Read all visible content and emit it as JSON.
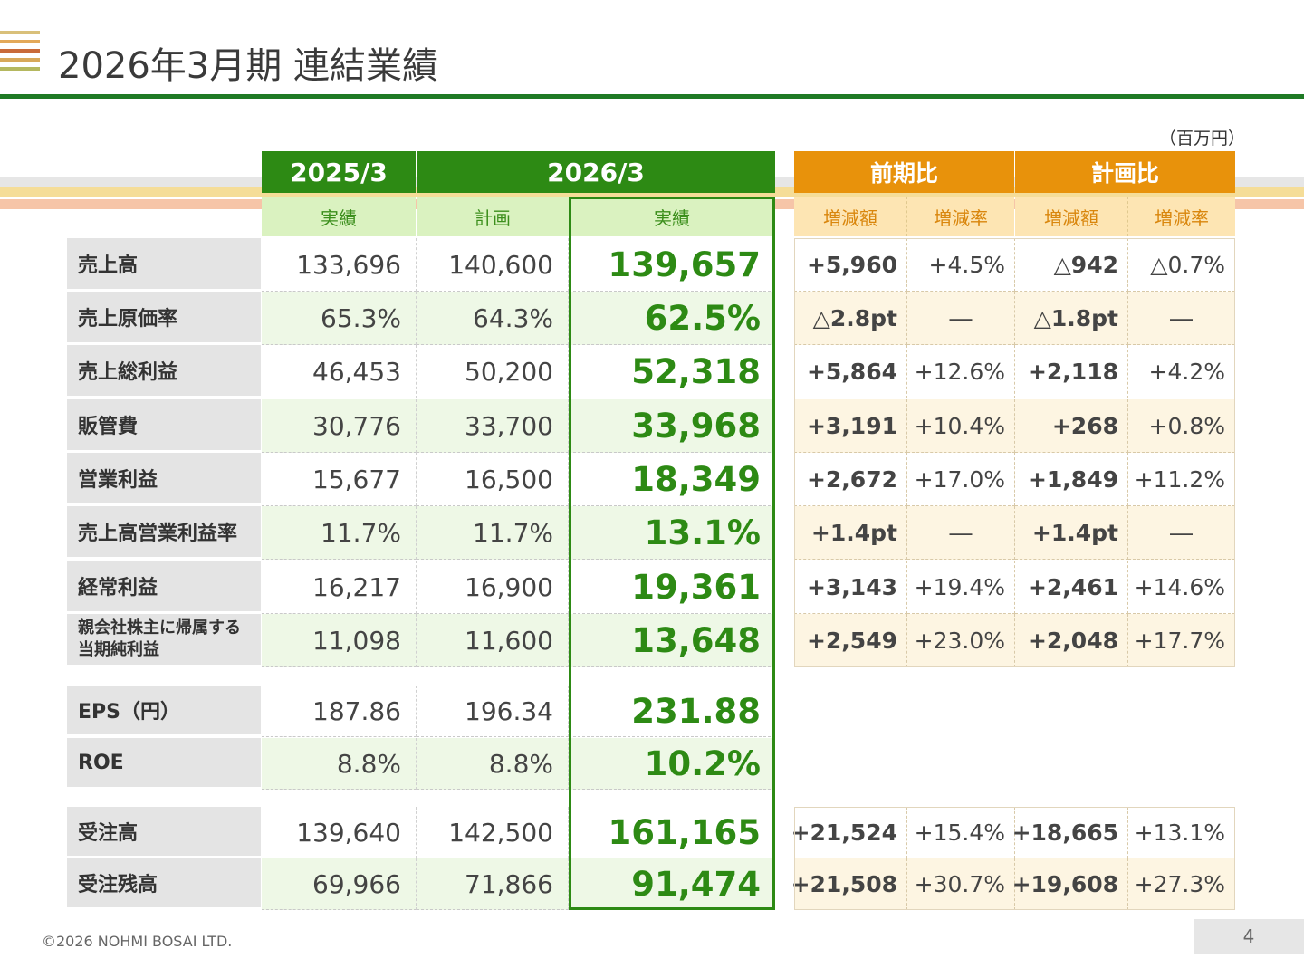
{
  "title": "2026年3月期 連結業績",
  "unit": "（百万円）",
  "colors": {
    "title_bars": [
      "#d9c07a",
      "#e3a95a",
      "#c96a3a",
      "#b5b860"
    ],
    "green": "#2d8a14",
    "orange": "#e8920b"
  },
  "headers": {
    "y2025": "2025/3",
    "y2026": "2026/3",
    "yoy": "前期比",
    "vsplan": "計画比",
    "sub_actual_2025": "実績",
    "sub_plan": "計画",
    "sub_actual_2026": "実績",
    "sub_yoy_amt": "増減額",
    "sub_yoy_rate": "増減率",
    "sub_plan_amt": "増減額",
    "sub_plan_rate": "増減率"
  },
  "rows": [
    {
      "label": "売上高",
      "a2025": "133,696",
      "plan": "140,600",
      "a2026": "139,657",
      "yoy_amt": "+5,960",
      "yoy_rate": "+4.5%",
      "plan_amt": "△942",
      "plan_rate": "△0.7%"
    },
    {
      "label": "売上原価率",
      "a2025": "65.3%",
      "plan": "64.3%",
      "a2026": "62.5%",
      "yoy_amt": "△2.8pt",
      "yoy_rate": "―",
      "plan_amt": "△1.8pt",
      "plan_rate": "―"
    },
    {
      "label": "売上総利益",
      "a2025": "46,453",
      "plan": "50,200",
      "a2026": "52,318",
      "yoy_amt": "+5,864",
      "yoy_rate": "+12.6%",
      "plan_amt": "+2,118",
      "plan_rate": "+4.2%"
    },
    {
      "label": "販管費",
      "a2025": "30,776",
      "plan": "33,700",
      "a2026": "33,968",
      "yoy_amt": "+3,191",
      "yoy_rate": "+10.4%",
      "plan_amt": "+268",
      "plan_rate": "+0.8%"
    },
    {
      "label": "営業利益",
      "a2025": "15,677",
      "plan": "16,500",
      "a2026": "18,349",
      "yoy_amt": "+2,672",
      "yoy_rate": "+17.0%",
      "plan_amt": "+1,849",
      "plan_rate": "+11.2%"
    },
    {
      "label": "売上高営業利益率",
      "a2025": "11.7%",
      "plan": "11.7%",
      "a2026": "13.1%",
      "yoy_amt": "+1.4pt",
      "yoy_rate": "―",
      "plan_amt": "+1.4pt",
      "plan_rate": "―"
    },
    {
      "label": "経常利益",
      "a2025": "16,217",
      "plan": "16,900",
      "a2026": "19,361",
      "yoy_amt": "+3,143",
      "yoy_rate": "+19.4%",
      "plan_amt": "+2,461",
      "plan_rate": "+14.6%"
    },
    {
      "label": "親会社株主に帰属する当期純利益",
      "label_line1": "親会社株主に帰属する",
      "label_line2": "当期純利益",
      "a2025": "11,098",
      "plan": "11,600",
      "a2026": "13,648",
      "yoy_amt": "+2,549",
      "yoy_rate": "+23.0%",
      "plan_amt": "+2,048",
      "plan_rate": "+17.7%"
    }
  ],
  "per_share": [
    {
      "label": "EPS（円）",
      "a2025": "187.86",
      "plan": "196.34",
      "a2026": "231.88"
    },
    {
      "label": "ROE",
      "a2025": "8.8%",
      "plan": "8.8%",
      "a2026": "10.2%"
    }
  ],
  "orders": [
    {
      "label": "受注高",
      "a2025": "139,640",
      "plan": "142,500",
      "a2026": "161,165",
      "yoy_amt": "+21,524",
      "yoy_rate": "+15.4%",
      "plan_amt": "+18,665",
      "plan_rate": "+13.1%"
    },
    {
      "label": "受注残高",
      "a2025": "69,966",
      "plan": "71,866",
      "a2026": "91,474",
      "yoy_amt": "+21,508",
      "yoy_rate": "+30.7%",
      "plan_amt": "+19,608",
      "plan_rate": "+27.3%"
    }
  ],
  "footer": "©2026 NOHMI BOSAI LTD.",
  "page_number": "4"
}
